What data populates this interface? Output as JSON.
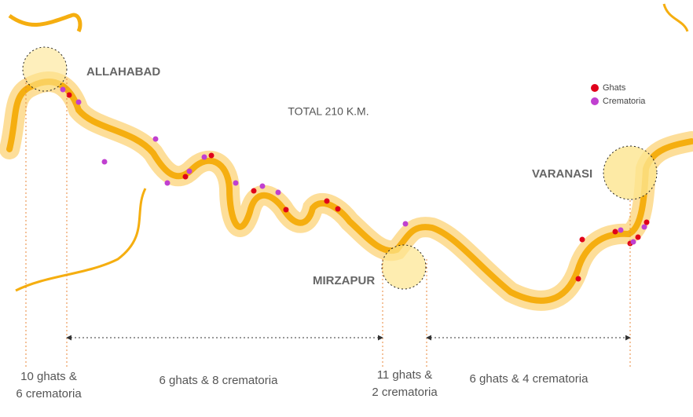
{
  "title": "TOTAL 210 K.M.",
  "cities": [
    {
      "name": "ALLAHABAD"
    },
    {
      "name": "MIRZAPUR"
    },
    {
      "name": "VARANASI"
    }
  ],
  "legend": [
    {
      "label": "Ghats",
      "color": "#e0001b"
    },
    {
      "label": "Crematoria",
      "color": "#c040d0"
    }
  ],
  "stretches": [
    {
      "lines": [
        "10 ghats &",
        "6 crematoria"
      ]
    },
    {
      "lines": [
        "6 ghats & 8 crematoria"
      ]
    },
    {
      "lines": [
        "11 ghats &",
        "2 crematoria"
      ]
    },
    {
      "lines": [
        "6 ghats & 4 crematoria"
      ]
    }
  ]
}
